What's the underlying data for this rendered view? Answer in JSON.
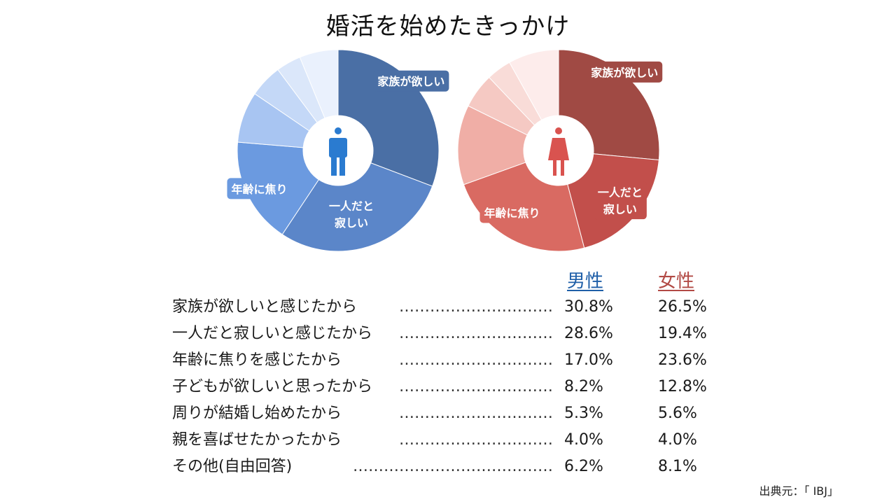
{
  "title": "婚活を始めたきっかけ",
  "colors": {
    "male_palette": [
      "#4a6fa5",
      "#5b86c9",
      "#6b9ae0",
      "#a8c5f2",
      "#c4d8f7",
      "#dbe7fa",
      "#eaf1fd"
    ],
    "female_palette": [
      "#a04a44",
      "#c24f4b",
      "#d96a62",
      "#f0aea6",
      "#f5c9c3",
      "#f9dcd8",
      "#fdeceb"
    ],
    "male_accent": "#1f5fa8",
    "female_accent": "#b24a45",
    "male_icon": "#2a7bd0",
    "female_icon": "#d9534f"
  },
  "headers": {
    "male": "男性",
    "female": "女性"
  },
  "rows": [
    {
      "label": "家族が欲しいと感じたから",
      "dots": "…………………………",
      "male": "30.8%",
      "female": "26.5%"
    },
    {
      "label": "一人だと寂しいと感じたから",
      "dots": "…………………………",
      "male": "28.6%",
      "female": "19.4%"
    },
    {
      "label": "年齢に焦りを感じたから",
      "dots": "…………………………",
      "male": "17.0%",
      "female": "23.6%"
    },
    {
      "label": "子どもが欲しいと思ったから",
      "dots": "…………………………",
      "male": "8.2%",
      "female": "12.8%"
    },
    {
      "label": "周りが結婚し始めたから",
      "dots": "…………………………",
      "male": "5.3%",
      "female": "5.6%"
    },
    {
      "label": "親を喜ばせたかったから",
      "dots": "…………………………",
      "male": "4.0%",
      "female": "4.0%"
    },
    {
      "label": "その他(自由回答)",
      "dots": "…………………………………",
      "male": "6.2%",
      "female": "8.1%"
    }
  ],
  "slice_labels": {
    "family": "家族が欲しい",
    "lonely_1": "一人だと",
    "lonely_2": "寂しい",
    "age": "年齢に焦り"
  },
  "source": "出典元：「 IBJ」",
  "chart_data": [
    {
      "type": "pie",
      "title": "男性",
      "categories": [
        "家族が欲しいと感じたから",
        "一人だと寂しいと感じたから",
        "年齢に焦りを感じたから",
        "子どもが欲しいと思ったから",
        "周りが結婚し始めたから",
        "親を喜ばせたかったから",
        "その他(自由回答)"
      ],
      "values": [
        30.8,
        28.6,
        17.0,
        8.2,
        5.3,
        4.0,
        6.2
      ]
    },
    {
      "type": "pie",
      "title": "女性",
      "categories": [
        "家族が欲しいと感じたから",
        "一人だと寂しいと感じたから",
        "年齢に焦りを感じたから",
        "子どもが欲しいと思ったから",
        "周りが結婚し始めたから",
        "親を喜ばせたかったから",
        "その他(自由回答)"
      ],
      "values": [
        26.5,
        19.4,
        23.6,
        12.8,
        5.6,
        4.0,
        8.1
      ]
    }
  ]
}
